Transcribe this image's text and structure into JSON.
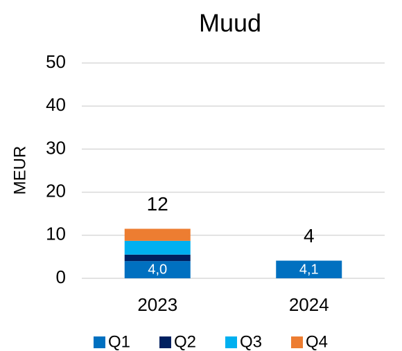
{
  "chart_data": {
    "type": "stacked_bar",
    "title": "Muud",
    "y_label": "MEUR",
    "categories": [
      "2023",
      "2024"
    ],
    "series": [
      {
        "name": "Q1",
        "color": "#0070c0",
        "values": [
          4.0,
          4.1
        ],
        "value_labels": [
          "4,0",
          "4,1"
        ]
      },
      {
        "name": "Q2",
        "color": "#002060",
        "values": [
          1.5,
          0
        ]
      },
      {
        "name": "Q3",
        "color": "#00b0f0",
        "values": [
          3.2,
          0
        ]
      },
      {
        "name": "Q4",
        "color": "#ed7d31",
        "values": [
          2.8,
          0
        ]
      }
    ],
    "totals": [
      12,
      4
    ],
    "ylim": [
      0,
      50
    ],
    "yticks": [
      0,
      10,
      20,
      30,
      40,
      50
    ],
    "grid": true
  }
}
